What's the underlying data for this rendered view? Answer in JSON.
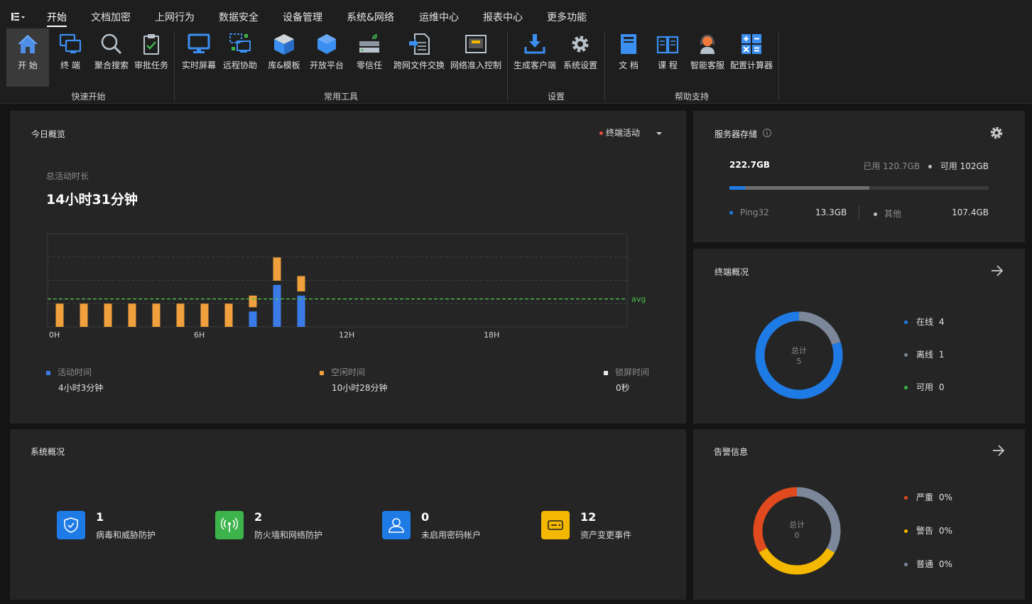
{
  "menu": {
    "items": [
      "开始",
      "文档加密",
      "上网行为",
      "数据安全",
      "设备管理",
      "系统&网络",
      "运维中心",
      "报表中心",
      "更多功能"
    ]
  },
  "ribbon": {
    "groups": {
      "quick_start": "快速开始",
      "tools": "常用工具",
      "settings": "设置",
      "help": "帮助支持"
    },
    "buttons": {
      "start": "开 始",
      "terminal": "终 端",
      "agg_search": "聚合搜索",
      "approval": "审批任务",
      "realtime_screen": "实时屏幕",
      "remote_assist": "远程协助",
      "library_template": "库&模板",
      "open_platform": "开放平台",
      "zero_trust": "零信任",
      "cross_net_file": "跨网文件交换",
      "net_access_ctrl": "网络准入控制",
      "gen_client": "生成客户端",
      "sys_settings": "系统设置",
      "docs": "文 档",
      "course": "课 程",
      "smart_service": "智能客服",
      "config_calc": "配置计算器"
    }
  },
  "today": {
    "title": "今日概览",
    "filter_label": "终端活动",
    "total_label": "总活动时长",
    "total_value": "14小时31分钟",
    "avg_label": "avg",
    "legend": {
      "active_label": "活动时间",
      "active_value": "4小时3分钟",
      "idle_label": "空闲时间",
      "idle_value": "10小时28分钟",
      "lock_label": "锁屏时间",
      "lock_value": "0秒"
    }
  },
  "chart_data": {
    "type": "bar",
    "stacked": true,
    "x_tick_labels": [
      "0H",
      "6H",
      "12H",
      "18H"
    ],
    "categories": [
      "0",
      "1",
      "2",
      "3",
      "4",
      "5",
      "6",
      "7",
      "8",
      "9",
      "10"
    ],
    "series": [
      {
        "name": "活动时间",
        "color": "#3b7be8",
        "values": [
          0,
          0,
          0,
          0,
          0,
          0,
          0,
          0,
          0.33,
          0.9,
          0.67
        ]
      },
      {
        "name": "空闲时间",
        "color": "#f0a03c",
        "values": [
          0.5,
          0.5,
          0.5,
          0.5,
          0.5,
          0.5,
          0.5,
          0.5,
          0.25,
          0.5,
          0.33
        ]
      }
    ],
    "avg": 0.6,
    "ylim": [
      0,
      2
    ],
    "colors": {
      "active": "#3b7be8",
      "idle": "#f0a03c",
      "lock": "#e8e8e8",
      "avg_line": "#4cc24c"
    }
  },
  "storage": {
    "title": "服务器存储",
    "total": "222.7GB",
    "used_label": "已用",
    "used_value": "120.7GB",
    "avail_label": "可用",
    "avail_value": "102GB",
    "used_fraction": 0.54,
    "ping_fraction": 0.06,
    "items": [
      {
        "name": "Ping32",
        "value": "13.3GB"
      },
      {
        "name": "其他",
        "value": "107.4GB"
      }
    ]
  },
  "terminal": {
    "title": "终端概况",
    "center_label": "总计",
    "center_value": "5",
    "items": [
      {
        "name": "在线",
        "value": "4",
        "color": "#1e7be6"
      },
      {
        "name": "离线",
        "value": "1",
        "color": "#7c8899"
      },
      {
        "name": "可用",
        "value": "0",
        "color": "#3cb44b"
      }
    ]
  },
  "system": {
    "title": "系统概况",
    "items": [
      {
        "num": "1",
        "label": "病毒和威胁防护",
        "color": "#1e7be6"
      },
      {
        "num": "2",
        "label": "防火墙和网络防护",
        "color": "#3cb44b"
      },
      {
        "num": "0",
        "label": "未启用密码帐户",
        "color": "#1e7be6"
      },
      {
        "num": "12",
        "label": "资产变更事件",
        "color": "#f5b800"
      }
    ]
  },
  "alarm": {
    "title": "告警信息",
    "center_label": "总计",
    "center_value": "0",
    "items": [
      {
        "name": "严重",
        "value": "0%",
        "color": "#e04a1e"
      },
      {
        "name": "警告",
        "value": "0%",
        "color": "#f5b800"
      },
      {
        "name": "普通",
        "value": "0%",
        "color": "#7c8899"
      }
    ]
  }
}
